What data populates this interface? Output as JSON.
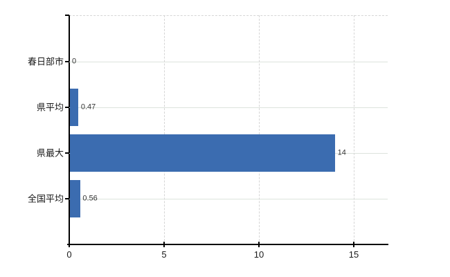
{
  "chart_data": {
    "type": "bar",
    "orientation": "horizontal",
    "title": "",
    "categories": [
      "春日部市",
      "県平均",
      "県最大",
      "全国平均"
    ],
    "values": [
      0,
      0.47,
      14,
      0.56
    ],
    "value_labels": [
      "0",
      "0.47",
      "14",
      "0.56"
    ],
    "x_ticks": [
      0,
      5,
      10,
      15
    ],
    "x_tick_labels": [
      "0",
      "5",
      "10",
      "15"
    ],
    "xlim": [
      0,
      16.8
    ],
    "grid": true,
    "legend": false,
    "gridline_style": {
      "horizontal": "solid",
      "vertical": "dashed",
      "top_border": "dashed"
    },
    "colors": {
      "bar": "#3b6cb0",
      "h_grid": "#dce3dc",
      "v_grid": "#d5d5d5",
      "axis": "#000000",
      "category_text": "#1a1a1a",
      "value_text": "#333333",
      "tick_text": "#1a1a1a",
      "background": "#ffffff"
    }
  }
}
